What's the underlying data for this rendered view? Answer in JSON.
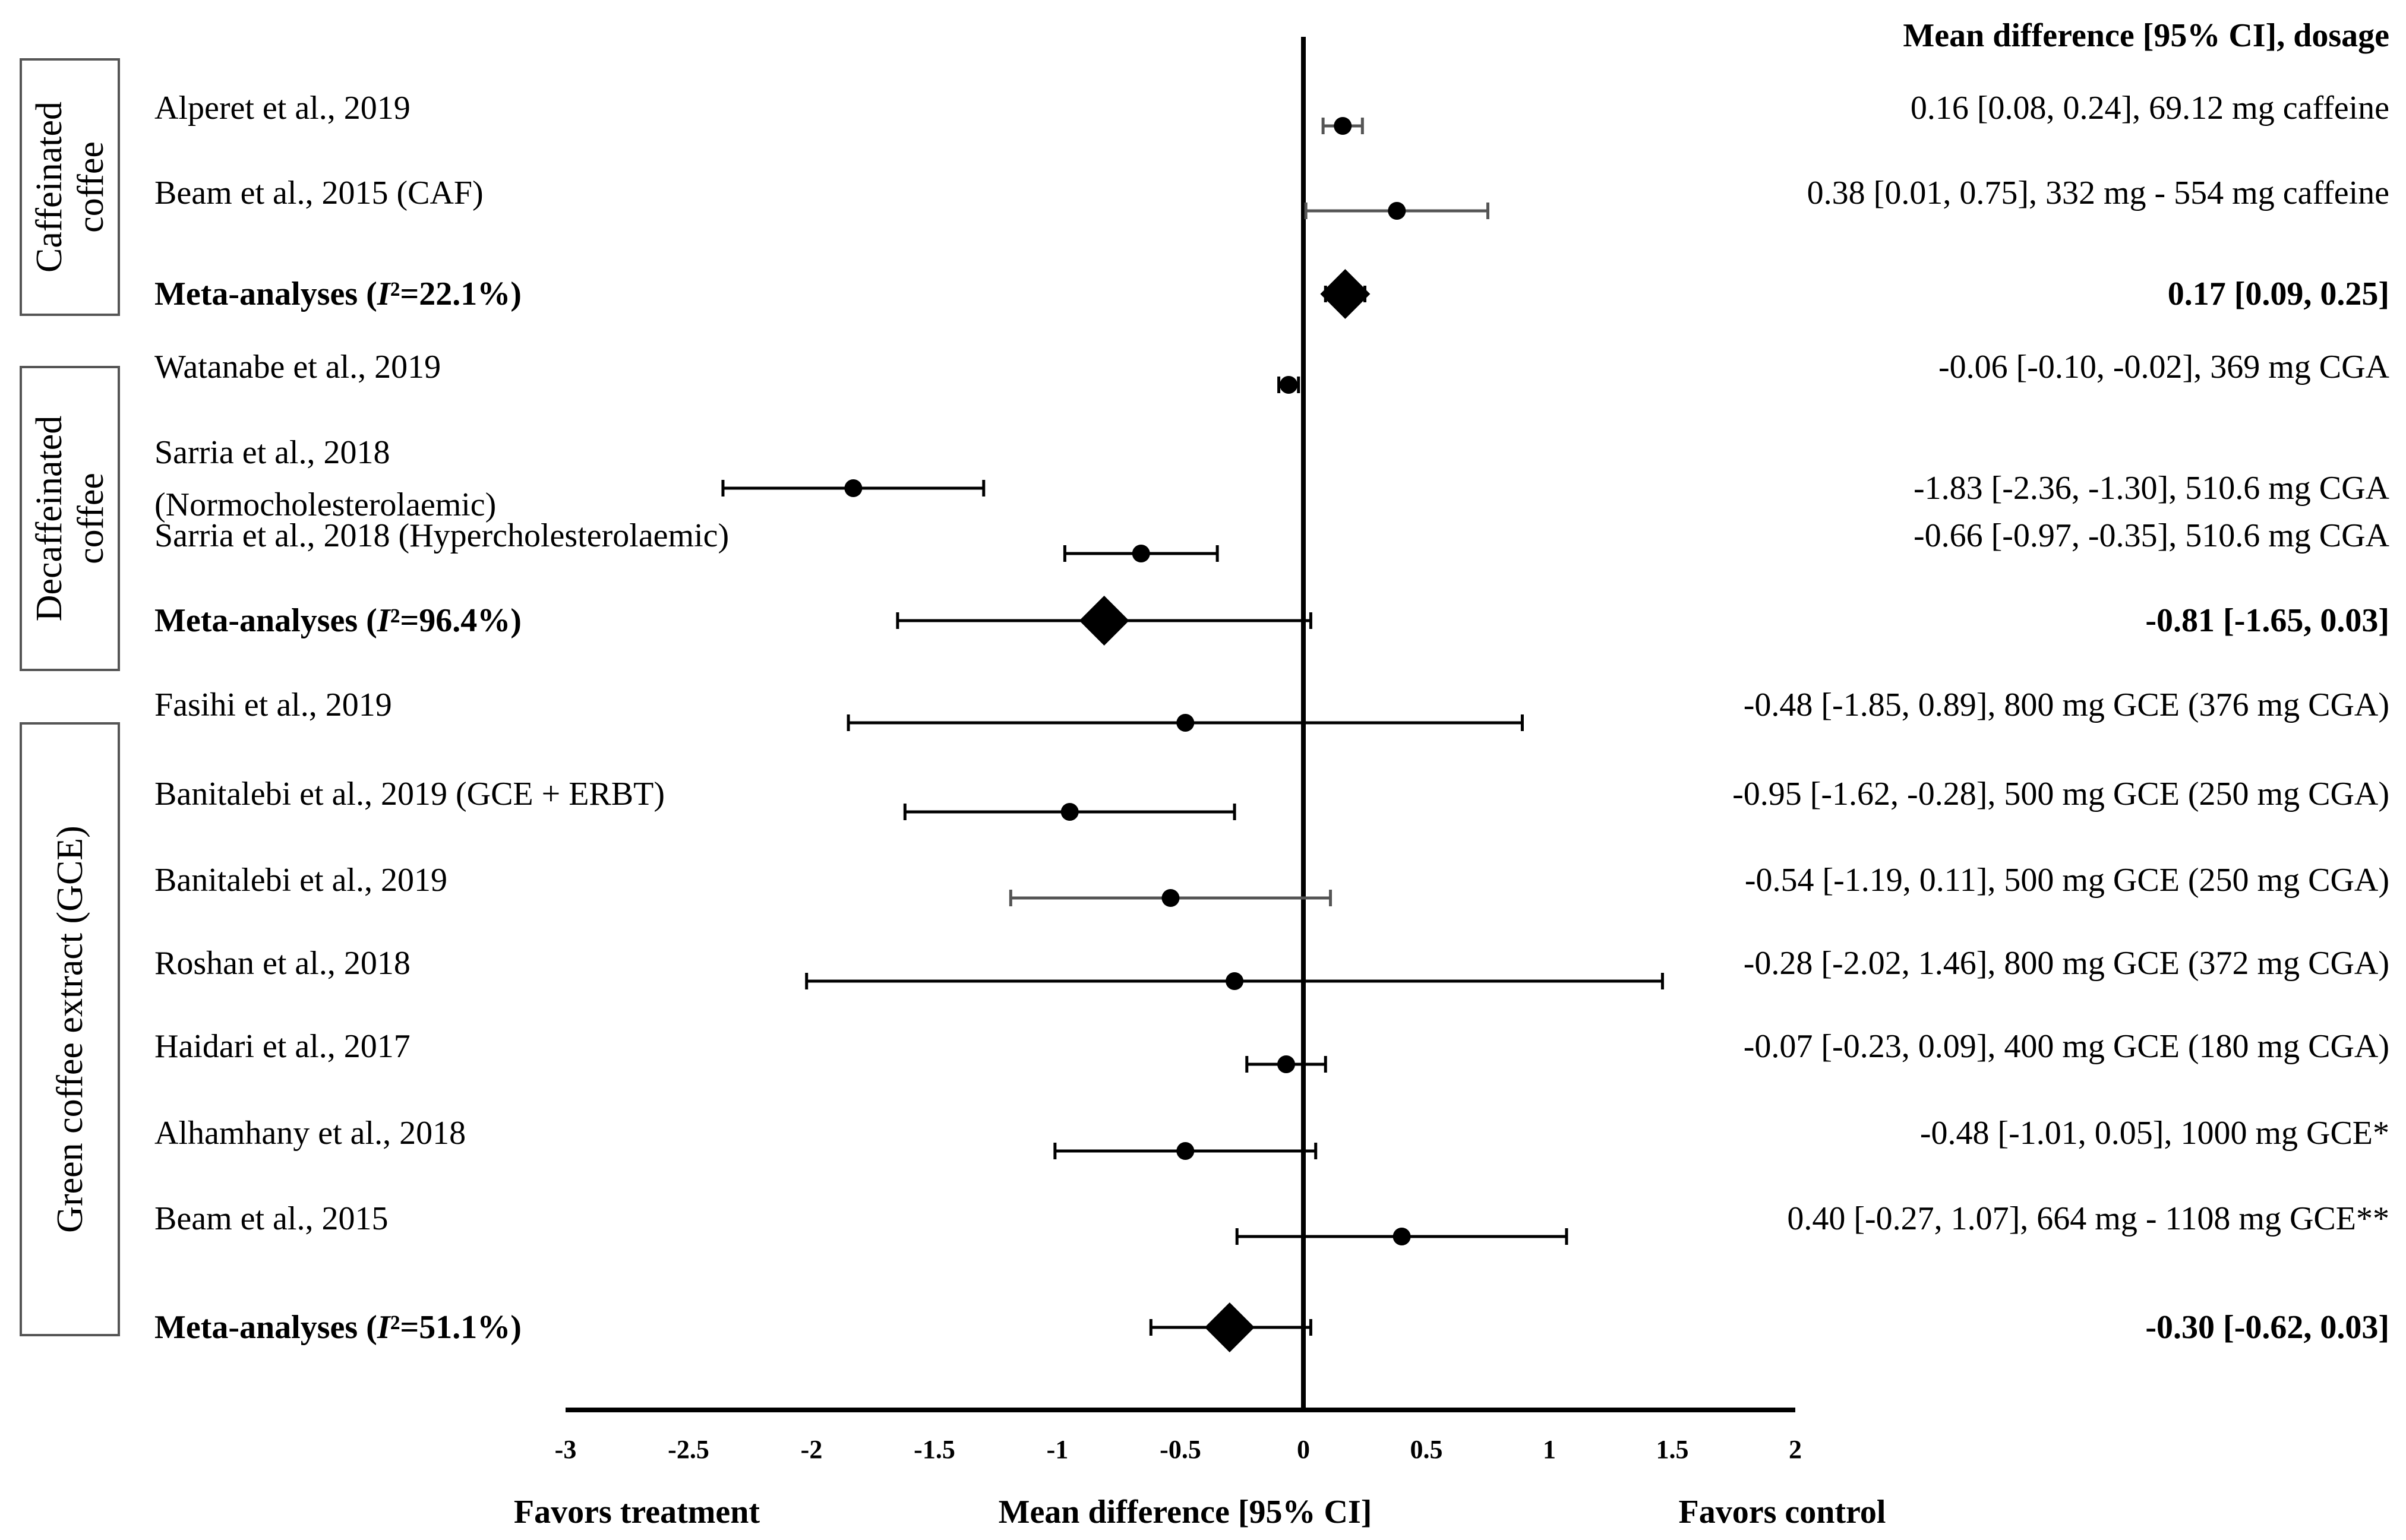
{
  "chart_data": {
    "type": "forest",
    "title": "",
    "right_header": "Mean difference [95% CI], dosage",
    "xlabel": "Mean difference [95% CI]",
    "favors_left": "Favors treatment",
    "favors_right": "Favors control",
    "xlim": [
      -3,
      2
    ],
    "xticks": [
      {
        "v": -3,
        "label": "-3"
      },
      {
        "v": -2.5,
        "label": "-2.5"
      },
      {
        "v": -2,
        "label": "-2"
      },
      {
        "v": -1.5,
        "label": "-1.5"
      },
      {
        "v": -1,
        "label": "-1"
      },
      {
        "v": -0.5,
        "label": "-0.5"
      },
      {
        "v": 0,
        "label": "0"
      },
      {
        "v": 0.5,
        "label": "0.5"
      },
      {
        "v": 1,
        "label": "1"
      },
      {
        "v": 1.5,
        "label": "1.5"
      },
      {
        "v": 2,
        "label": "2"
      }
    ],
    "groups": [
      {
        "name": "Caffeinated coffee",
        "name_lines": [
          "Caffeinated",
          "coffee"
        ],
        "studies": [
          {
            "label": "Alperet et al., 2019",
            "md": 0.16,
            "lo": 0.08,
            "hi": 0.24,
            "text": "0.16 [0.08, 0.24], 69.12 mg caffeine",
            "ci_color": "#555555"
          },
          {
            "label": "Beam et al., 2015 (CAF)",
            "md": 0.38,
            "lo": 0.01,
            "hi": 0.75,
            "text": "0.38 [0.01, 0.75], 332 mg - 554 mg caffeine",
            "ci_color": "#555555"
          }
        ],
        "pooled": {
          "label_prefix": "Meta-analyses (",
          "label_i": "I",
          "label_suffix": "²=22.1%)",
          "md": 0.17,
          "lo": 0.09,
          "hi": 0.25,
          "text": "0.17 [0.09, 0.25]"
        }
      },
      {
        "name": "Decaffeinated coffee",
        "name_lines": [
          "Decaffeinated",
          "coffee"
        ],
        "studies": [
          {
            "label": "Watanabe et al., 2019",
            "md": -0.06,
            "lo": -0.1,
            "hi": -0.02,
            "text": "-0.06 [-0.10, -0.02], 369 mg CGA",
            "ci_color": "#000000"
          },
          {
            "label": "Sarria et al., 2018",
            "label_line2": "(Normocholesterolaemic)",
            "md": -1.83,
            "lo": -2.36,
            "hi": -1.3,
            "text": "-1.83 [-2.36, -1.30], 510.6 mg CGA",
            "ci_color": "#000000"
          },
          {
            "label": "Sarria et al., 2018 (Hypercholesterolaemic)",
            "md": -0.66,
            "lo": -0.97,
            "hi": -0.35,
            "text": "-0.66 [-0.97, -0.35], 510.6 mg CGA",
            "ci_color": "#000000"
          }
        ],
        "pooled": {
          "label_prefix": "Meta-analyses (",
          "label_i": "I",
          "label_suffix": "²=96.4%)",
          "md": -0.81,
          "lo": -1.65,
          "hi": 0.03,
          "text": "-0.81 [-1.65, 0.03]"
        }
      },
      {
        "name": "Green coffee extract (GCE)",
        "name_lines": [
          "Green coffee extract (GCE)"
        ],
        "studies": [
          {
            "label": "Fasihi et al., 2019",
            "md": -0.48,
            "lo": -1.85,
            "hi": 0.89,
            "text": "-0.48 [-1.85, 0.89], 800 mg GCE (376 mg CGA)",
            "ci_color": "#000000"
          },
          {
            "label": "Banitalebi et al., 2019 (GCE + ERBT)",
            "md": -0.95,
            "lo": -1.62,
            "hi": -0.28,
            "text": "-0.95 [-1.62, -0.28], 500 mg GCE (250 mg CGA)",
            "ci_color": "#000000"
          },
          {
            "label": "Banitalebi et al., 2019",
            "md": -0.54,
            "lo": -1.19,
            "hi": 0.11,
            "text": "-0.54 [-1.19, 0.11], 500 mg GCE (250 mg CGA)",
            "ci_color": "#555555"
          },
          {
            "label": "Roshan et al., 2018",
            "md": -0.28,
            "lo": -2.02,
            "hi": 1.46,
            "text": "-0.28 [-2.02, 1.46], 800 mg GCE (372 mg CGA)",
            "ci_color": "#000000"
          },
          {
            "label": "Haidari et al., 2017",
            "md": -0.07,
            "lo": -0.23,
            "hi": 0.09,
            "text": "-0.07 [-0.23, 0.09], 400 mg GCE (180 mg CGA)",
            "ci_color": "#000000"
          },
          {
            "label": "Alhamhany et al., 2018",
            "md": -0.48,
            "lo": -1.01,
            "hi": 0.05,
            "text": "-0.48 [-1.01, 0.05], 1000 mg GCE*",
            "ci_color": "#000000"
          },
          {
            "label": "Beam et al., 2015",
            "md": 0.4,
            "lo": -0.27,
            "hi": 1.07,
            "text": "0.40 [-0.27, 1.07], 664 mg - 1108 mg GCE**",
            "ci_color": "#000000"
          }
        ],
        "pooled": {
          "label_prefix": "Meta-analyses (",
          "label_i": "I",
          "label_suffix": "²=51.1%)",
          "md": -0.3,
          "lo": -0.62,
          "hi": 0.03,
          "text": "-0.30 [-0.62, 0.03]"
        }
      }
    ]
  }
}
